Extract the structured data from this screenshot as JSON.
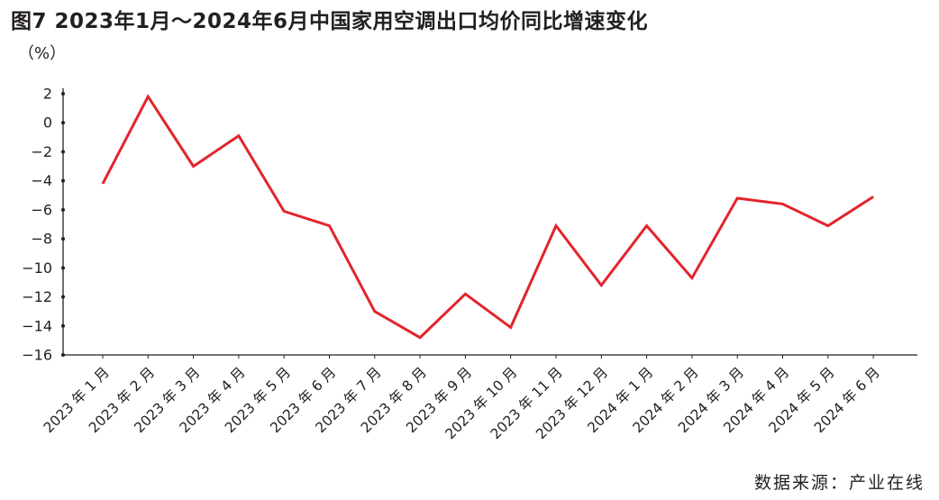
{
  "title": "图7  2023年1月～2024年6月中国家用空调出口均价同比增速变化",
  "unit_label": "（%）",
  "source": "数据来源：产业在线",
  "colors": {
    "line": "#e3242b",
    "axis": "#231f20"
  },
  "chart_data": {
    "type": "line",
    "title": "图7  2023年1月～2024年6月中国家用空调出口均价同比增速变化",
    "ylabel": "（%）",
    "xlabel": "",
    "ylim": [
      -16,
      2
    ],
    "yticks": [
      2,
      0,
      -2,
      -4,
      -6,
      -8,
      -10,
      -12,
      -14,
      -16
    ],
    "grid": false,
    "categories": [
      "2023 年 1 月",
      "2023 年 2 月",
      "2023 年 3 月",
      "2023 年 4 月",
      "2023 年 5 月",
      "2023 年 6 月",
      "2023 年 7 月",
      "2023 年 8 月",
      "2023 年 9 月",
      "2023 年 10 月",
      "2023 年 11 月",
      "2023 年 12 月",
      "2024 年 1 月",
      "2024 年 2 月",
      "2024 年 3 月",
      "2024 年 4 月",
      "2024 年 5 月",
      "2024 年 6 月"
    ],
    "series": [
      {
        "values": [
          -4.2,
          1.8,
          -3.0,
          -0.9,
          -6.1,
          -7.1,
          -13.0,
          -14.8,
          -11.8,
          -14.1,
          -7.1,
          -11.2,
          -7.1,
          -10.7,
          -5.2,
          -5.6,
          -7.1,
          -5.1
        ]
      }
    ]
  }
}
